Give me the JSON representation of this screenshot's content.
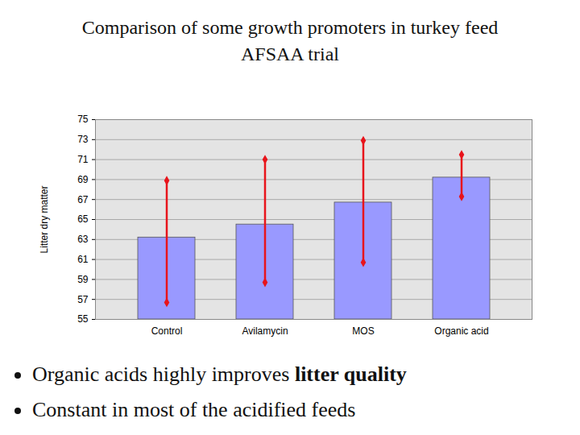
{
  "chart_data": {
    "type": "bar",
    "title": "Comparison of some growth promoters in turkey feed",
    "subtitle": "AFSAA trial",
    "y_label": "Litter dry matter",
    "categories": [
      "Control",
      "Avilamycin",
      "MOS",
      "Organic acid"
    ],
    "values": [
      63.2,
      64.5,
      66.7,
      69.2
    ],
    "error_low": [
      56.7,
      58.7,
      60.7,
      67.3
    ],
    "error_high": [
      68.9,
      71.0,
      72.9,
      71.5
    ],
    "color": "#9999ff",
    "ylim": [
      55,
      75
    ],
    "yticks": [
      55,
      57,
      59,
      61,
      63,
      65,
      67,
      69,
      71,
      73,
      75
    ],
    "grid": true
  },
  "notes": [
    [
      {
        "text": "Organic acids highly improves "
      },
      {
        "text": "litter quality",
        "bold": true
      }
    ],
    [
      {
        "text": "Constant in most of the acidified feeds"
      }
    ]
  ]
}
